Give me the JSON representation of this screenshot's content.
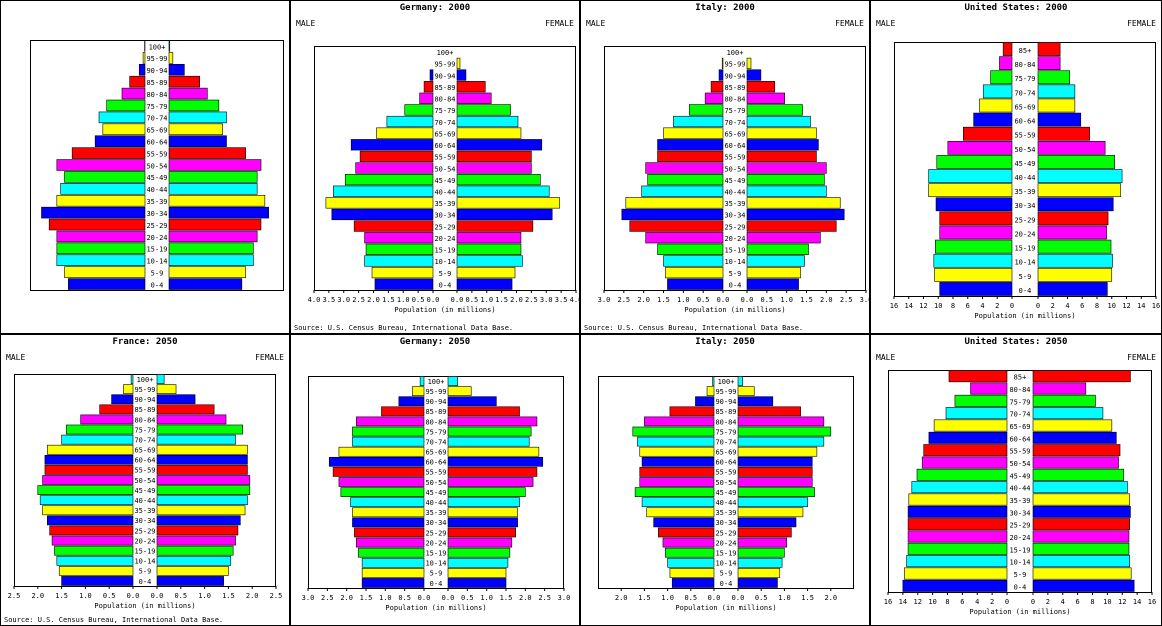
{
  "colors": [
    "#0000ff",
    "#ffff00",
    "#00ffff",
    "#00ff00",
    "#ff00ff",
    "#ff0000"
  ],
  "chart_data": [
    {
      "id": "p0",
      "type": "bar",
      "title": "",
      "male_label": "",
      "female_label": "",
      "xlabel": "",
      "source": "",
      "age_groups": [
        "0-4",
        "5-9",
        "10-14",
        "15-19",
        "20-24",
        "25-29",
        "30-34",
        "35-39",
        "40-44",
        "45-49",
        "50-54",
        "55-59",
        "60-64",
        "65-69",
        "70-74",
        "75-79",
        "80-84",
        "85-89",
        "90-94",
        "95-99",
        "100+"
      ],
      "male": [
        2.0,
        2.1,
        2.3,
        2.3,
        2.3,
        2.5,
        2.7,
        2.3,
        2.2,
        2.1,
        2.3,
        1.9,
        1.3,
        1.1,
        1.2,
        1.0,
        0.6,
        0.4,
        0.15,
        0.05,
        0.01
      ],
      "female": [
        1.9,
        2.0,
        2.2,
        2.2,
        2.3,
        2.4,
        2.6,
        2.5,
        2.3,
        2.3,
        2.4,
        2.0,
        1.5,
        1.4,
        1.5,
        1.3,
        1.0,
        0.8,
        0.4,
        0.1,
        0.02
      ],
      "xmax": 3.0,
      "ticks": [],
      "show_tick_labels": false
    },
    {
      "id": "p1",
      "type": "bar",
      "title": "Germany: 2000",
      "male_label": "MALE",
      "female_label": "FEMALE",
      "xlabel": "Population (in millions)",
      "source": "Source: U.S. Census Bureau, International Data Base.",
      "age_groups": [
        "0-4",
        "5-9",
        "10-14",
        "15-19",
        "20-24",
        "25-29",
        "30-34",
        "35-39",
        "40-44",
        "45-49",
        "50-54",
        "55-59",
        "60-64",
        "65-69",
        "70-74",
        "75-79",
        "80-84",
        "85-89",
        "90-94",
        "95-99",
        "100+"
      ],
      "male": [
        1.95,
        2.05,
        2.3,
        2.25,
        2.3,
        2.65,
        3.4,
        3.6,
        3.35,
        2.95,
        2.6,
        2.45,
        2.75,
        1.9,
        1.55,
        0.95,
        0.45,
        0.3,
        0.1,
        0.0,
        0.0
      ],
      "female": [
        1.85,
        1.95,
        2.2,
        2.15,
        2.15,
        2.55,
        3.2,
        3.45,
        3.1,
        2.8,
        2.5,
        2.5,
        2.85,
        2.15,
        2.05,
        1.8,
        1.15,
        0.95,
        0.3,
        0.1,
        0.0
      ],
      "xmax": 4.0,
      "ticks": [
        4.0,
        3.5,
        3.0,
        2.5,
        2.0,
        1.5,
        1.0,
        0.5,
        0.0
      ],
      "show_tick_labels": true
    },
    {
      "id": "p2",
      "type": "bar",
      "title": "Italy: 2000",
      "male_label": "MALE",
      "female_label": "FEMALE",
      "xlabel": "Population (in millions)",
      "source": "Source: U.S. Census Bureau, International Data Base.",
      "age_groups": [
        "0-4",
        "5-9",
        "10-14",
        "15-19",
        "20-24",
        "25-29",
        "30-34",
        "35-39",
        "40-44",
        "45-49",
        "50-54",
        "55-59",
        "60-64",
        "65-69",
        "70-74",
        "75-79",
        "80-84",
        "85-89",
        "90-94",
        "95-99",
        "100+"
      ],
      "male": [
        1.4,
        1.45,
        1.5,
        1.65,
        1.95,
        2.35,
        2.55,
        2.45,
        2.05,
        1.9,
        1.95,
        1.65,
        1.65,
        1.5,
        1.25,
        0.85,
        0.45,
        0.3,
        0.1,
        0.02,
        0.0
      ],
      "female": [
        1.3,
        1.35,
        1.45,
        1.55,
        1.85,
        2.25,
        2.45,
        2.35,
        2.0,
        1.95,
        2.0,
        1.75,
        1.8,
        1.75,
        1.6,
        1.4,
        0.95,
        0.7,
        0.35,
        0.1,
        0.0
      ],
      "xmax": 3.0,
      "ticks": [
        3.0,
        2.5,
        2.0,
        1.5,
        1.0,
        0.5,
        0.0
      ],
      "show_tick_labels": true
    },
    {
      "id": "p3",
      "type": "bar",
      "title": "United States: 2000",
      "male_label": "MALE",
      "female_label": "FEMALE",
      "xlabel": "Population (in millions)",
      "source": "",
      "age_groups": [
        "0-4",
        "5-9",
        "10-14",
        "15-19",
        "20-24",
        "25-29",
        "30-34",
        "35-39",
        "40-44",
        "45-49",
        "50-54",
        "55-59",
        "60-64",
        "65-69",
        "70-74",
        "75-79",
        "80-84",
        "85+"
      ],
      "male": [
        9.8,
        10.5,
        10.6,
        10.4,
        9.8,
        9.8,
        10.3,
        11.3,
        11.3,
        10.2,
        8.7,
        6.6,
        5.2,
        4.4,
        3.9,
        2.9,
        1.7,
        1.2
      ],
      "female": [
        9.4,
        10.0,
        10.1,
        9.9,
        9.3,
        9.5,
        10.2,
        11.2,
        11.4,
        10.4,
        9.1,
        7.0,
        5.8,
        5.0,
        5.0,
        4.3,
        3.0,
        3.0
      ],
      "xmax": 16,
      "ticks": [
        16,
        14,
        12,
        10,
        8,
        6,
        4,
        2,
        0
      ],
      "show_tick_labels": true
    },
    {
      "id": "p4",
      "type": "bar",
      "title": "France: 2050",
      "male_label": "MALE",
      "female_label": "FEMALE",
      "xlabel": "Population (in millions)",
      "source": "Source: U.S. Census Bureau, International Data Base.",
      "age_groups": [
        "0-4",
        "5-9",
        "10-14",
        "15-19",
        "20-24",
        "25-29",
        "30-34",
        "35-39",
        "40-44",
        "45-49",
        "50-54",
        "55-59",
        "60-64",
        "65-69",
        "70-74",
        "75-79",
        "80-84",
        "85-89",
        "90-94",
        "95-99",
        "100+"
      ],
      "male": [
        1.5,
        1.55,
        1.6,
        1.65,
        1.7,
        1.75,
        1.8,
        1.9,
        1.95,
        2.0,
        1.9,
        1.85,
        1.85,
        1.8,
        1.5,
        1.4,
        1.1,
        0.7,
        0.45,
        0.2,
        0.04
      ],
      "female": [
        1.4,
        1.5,
        1.55,
        1.6,
        1.65,
        1.7,
        1.75,
        1.85,
        1.9,
        1.95,
        1.95,
        1.9,
        1.9,
        1.9,
        1.65,
        1.8,
        1.45,
        1.2,
        0.8,
        0.4,
        0.15
      ],
      "xmax": 2.5,
      "ticks": [
        2.5,
        2.0,
        1.5,
        1.0,
        0.5,
        0.0
      ],
      "show_tick_labels": true
    },
    {
      "id": "p5",
      "type": "bar",
      "title": "Germany: 2050",
      "male_label": "",
      "female_label": "",
      "xlabel": "Population (in millions)",
      "source": "",
      "age_groups": [
        "0-4",
        "5-9",
        "10-14",
        "15-19",
        "20-24",
        "25-29",
        "30-34",
        "35-39",
        "40-44",
        "45-49",
        "50-54",
        "55-59",
        "60-64",
        "65-69",
        "70-74",
        "75-79",
        "80-84",
        "85-89",
        "90-94",
        "95-99",
        "100+"
      ],
      "male": [
        1.6,
        1.6,
        1.6,
        1.7,
        1.75,
        1.8,
        1.85,
        1.85,
        1.9,
        2.15,
        2.2,
        2.35,
        2.45,
        2.2,
        1.85,
        1.85,
        1.75,
        1.1,
        0.65,
        0.3,
        0.1
      ],
      "female": [
        1.5,
        1.5,
        1.55,
        1.6,
        1.65,
        1.75,
        1.8,
        1.8,
        1.85,
        2.0,
        2.2,
        2.3,
        2.45,
        2.35,
        2.1,
        2.15,
        2.3,
        1.85,
        1.25,
        0.6,
        0.25
      ],
      "xmax": 3.0,
      "ticks": [
        3.0,
        2.5,
        2.0,
        1.5,
        1.0,
        0.5,
        0.0
      ],
      "show_tick_labels": true
    },
    {
      "id": "p6",
      "type": "bar",
      "title": "Italy: 2050",
      "male_label": "",
      "female_label": "",
      "xlabel": "Population (in millions)",
      "source": "",
      "age_groups": [
        "0-4",
        "5-9",
        "10-14",
        "15-19",
        "20-24",
        "25-29",
        "30-34",
        "35-39",
        "40-44",
        "45-49",
        "50-54",
        "55-59",
        "60-64",
        "65-69",
        "70-74",
        "75-79",
        "80-84",
        "85-89",
        "90-94",
        "95-99",
        "100+"
      ],
      "male": [
        0.9,
        0.95,
        1.0,
        1.05,
        1.1,
        1.2,
        1.3,
        1.45,
        1.55,
        1.7,
        1.6,
        1.6,
        1.55,
        1.6,
        1.65,
        1.75,
        1.5,
        0.95,
        0.4,
        0.15,
        0.03
      ],
      "female": [
        0.85,
        0.9,
        0.95,
        1.0,
        1.05,
        1.15,
        1.25,
        1.4,
        1.5,
        1.65,
        1.6,
        1.6,
        1.6,
        1.7,
        1.85,
        2.0,
        1.85,
        1.35,
        0.75,
        0.35,
        0.1
      ],
      "xmax": 2.5,
      "ticks": [
        2.0,
        1.5,
        1.0,
        0.5,
        0.0
      ],
      "show_tick_labels": true
    },
    {
      "id": "p7",
      "type": "bar",
      "title": "United States: 2050",
      "male_label": "MALE",
      "female_label": "FEMALE",
      "xlabel": "Population (in millions)",
      "source": "",
      "age_groups": [
        "0-4",
        "5-9",
        "10-14",
        "15-19",
        "20-24",
        "25-29",
        "30-34",
        "35-39",
        "40-44",
        "45-49",
        "50-54",
        "55-59",
        "60-64",
        "65-69",
        "70-74",
        "75-79",
        "80-84",
        "85+"
      ],
      "male": [
        14.0,
        13.8,
        13.5,
        13.3,
        13.3,
        13.3,
        13.3,
        13.2,
        12.8,
        12.1,
        11.4,
        11.2,
        10.5,
        9.8,
        8.2,
        7.0,
        4.9,
        7.8
      ],
      "female": [
        13.6,
        13.2,
        13.0,
        12.9,
        12.9,
        13.0,
        13.1,
        13.0,
        12.7,
        12.2,
        11.5,
        11.7,
        11.2,
        10.6,
        9.4,
        8.4,
        7.1,
        13.1
      ],
      "xmax": 16,
      "ticks": [
        16,
        14,
        12,
        10,
        8,
        6,
        4,
        2,
        0
      ],
      "show_tick_labels": true
    }
  ]
}
